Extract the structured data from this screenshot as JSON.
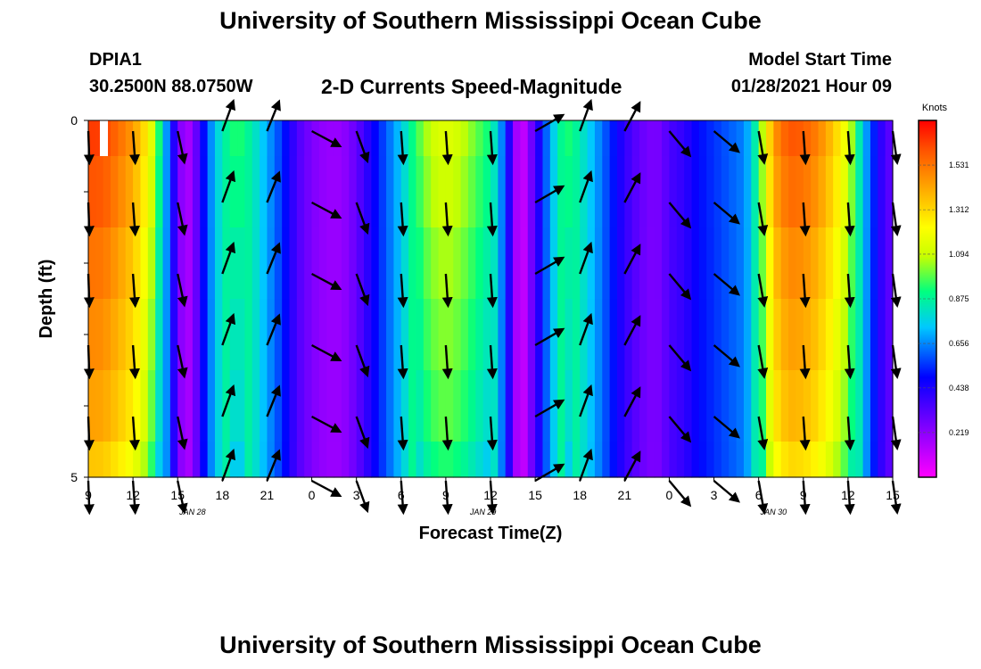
{
  "header": {
    "title_top": "University of Southern Mississippi Ocean Cube",
    "station": "DPIA1",
    "coords": "30.2500N 88.0750W",
    "subtitle": "2-D Currents Speed-Magnitude",
    "model_label": "Model Start Time",
    "model_time": "01/28/2021 Hour 09",
    "title_bottom": "University of Southern Mississippi Ocean Cube"
  },
  "chart_data": {
    "type": "heatmap",
    "title": "2-D Currents Speed-Magnitude",
    "xlabel": "Forecast Time(Z)",
    "ylabel": "Depth (ft)",
    "x_tick_labels": [
      "9",
      "12",
      "15",
      "18",
      "21",
      "0",
      "3",
      "6",
      "9",
      "12",
      "15",
      "18",
      "21",
      "0",
      "3",
      "6",
      "9",
      "12",
      "15"
    ],
    "x_hours": [
      0,
      3,
      6,
      9,
      12,
      15,
      18,
      21,
      24,
      27,
      30,
      33,
      36,
      39,
      42,
      45,
      48,
      51,
      54
    ],
    "date_labels": [
      {
        "label": "JAN 28",
        "hour": 7
      },
      {
        "label": "JAN 29",
        "hour": 26.5
      },
      {
        "label": "JAN 30",
        "hour": 46
      }
    ],
    "ylim": [
      0,
      5
    ],
    "y_tick_labels": [
      "0",
      "5"
    ],
    "depth_levels": [
      0.25,
      1.25,
      2.25,
      3.25,
      4.25,
      5.0
    ],
    "colorbar": {
      "unit": "Knots",
      "range": [
        0,
        1.75
      ],
      "tick_labels": [
        "1.531",
        "1.312",
        "1.094",
        "0.875",
        "0.656",
        "0.438",
        "0.219"
      ],
      "tick_values": [
        1.531,
        1.312,
        1.094,
        0.875,
        0.656,
        0.438,
        0.219
      ]
    },
    "speed_profile": {
      "hours": [
        0,
        1,
        2,
        3,
        4,
        4.5,
        5,
        5.5,
        6,
        6.5,
        7,
        7.5,
        8,
        9,
        10,
        11,
        12,
        13,
        14,
        15,
        16,
        17,
        18,
        19,
        20,
        21,
        22,
        23,
        24,
        25,
        26,
        27,
        27.5,
        28,
        28.5,
        29,
        30,
        31,
        32,
        33,
        34,
        35,
        36,
        37,
        38,
        38.5,
        39,
        40,
        41,
        42,
        43,
        44,
        44.5,
        45,
        46,
        47,
        48,
        49,
        50,
        51,
        51.5,
        52,
        52.5,
        53,
        53.5,
        54
      ],
      "speeds": [
        1.65,
        1.64,
        1.55,
        1.45,
        1.25,
        1.05,
        0.8,
        0.55,
        0.3,
        0.15,
        0.2,
        0.4,
        0.6,
        0.85,
        0.95,
        0.85,
        0.7,
        0.55,
        0.35,
        0.25,
        0.2,
        0.2,
        0.3,
        0.45,
        0.6,
        0.75,
        0.95,
        1.1,
        1.15,
        1.1,
        1.0,
        0.9,
        0.75,
        0.55,
        0.3,
        0.05,
        0.35,
        0.7,
        0.95,
        0.85,
        0.7,
        0.55,
        0.4,
        0.3,
        0.25,
        0.28,
        0.35,
        0.4,
        0.5,
        0.55,
        0.6,
        0.65,
        0.75,
        0.95,
        1.45,
        1.6,
        1.58,
        1.5,
        1.35,
        1.15,
        0.95,
        0.75,
        0.6,
        0.45,
        0.35,
        0.3
      ]
    },
    "depth_factors": [
      1.0,
      0.97,
      0.93,
      0.9,
      0.87,
      0.82
    ],
    "vectors": {
      "hours": [
        0,
        3,
        6,
        9,
        12,
        15,
        18,
        21,
        24,
        27,
        30,
        33,
        36,
        39,
        42,
        45,
        48,
        51,
        54
      ],
      "depths": [
        0.15,
        1.15,
        2.15,
        3.15,
        4.15,
        5.05
      ],
      "directions_deg": [
        178,
        176,
        168,
        20,
        22,
        118,
        160,
        176,
        176,
        176,
        60,
        20,
        28,
        140,
        130,
        170,
        176,
        176,
        172
      ]
    }
  }
}
